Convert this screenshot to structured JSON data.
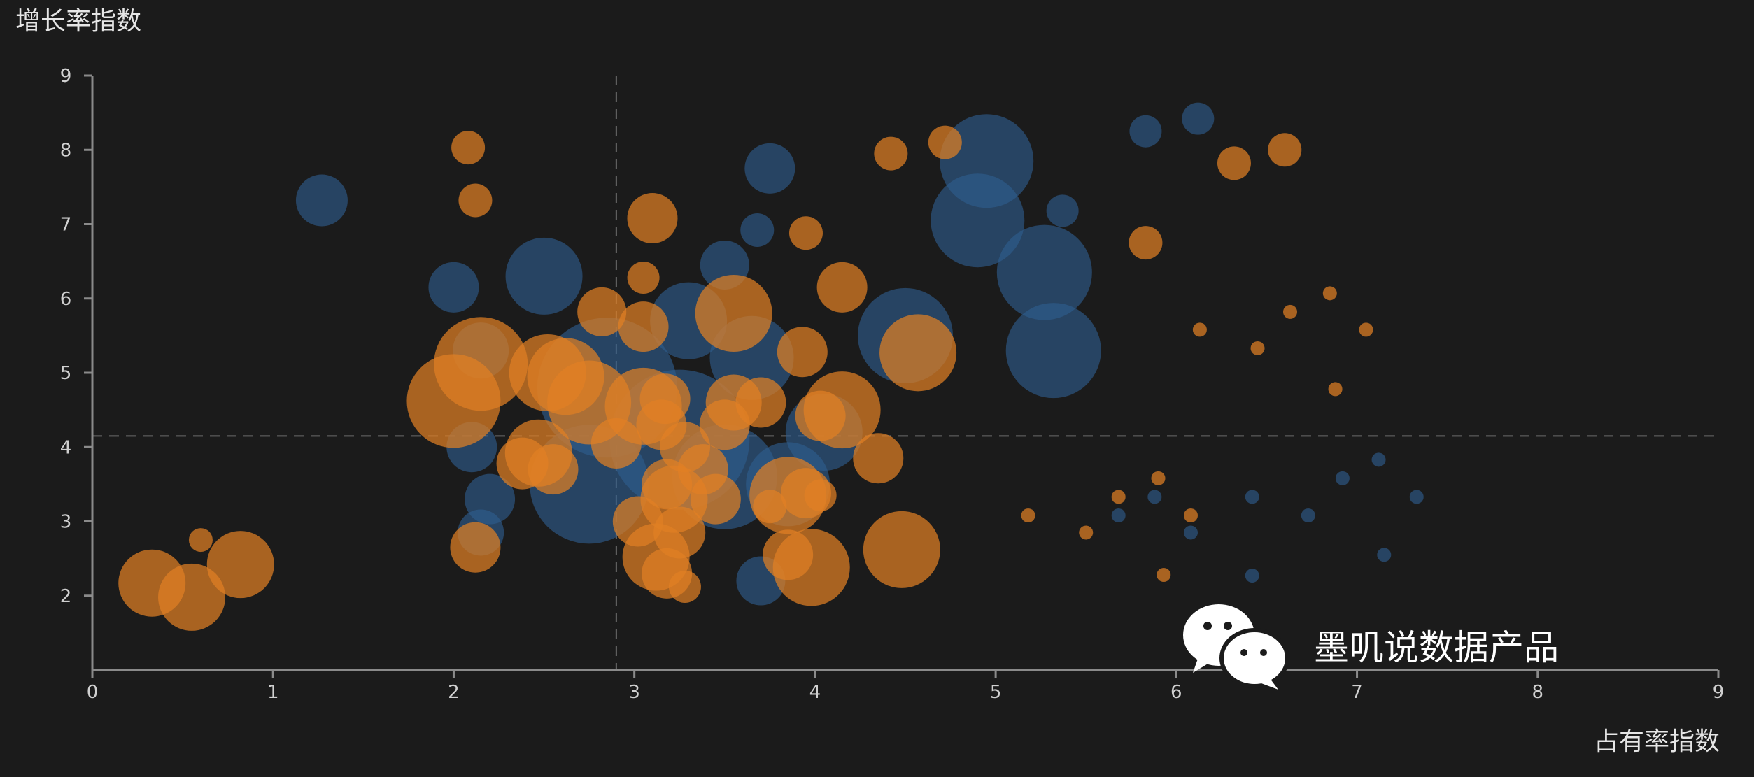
{
  "chart_data": {
    "type": "scatter",
    "subtype": "bubble",
    "xlabel": "占有率指数",
    "ylabel": "增长率指数",
    "xlim": [
      0,
      9
    ],
    "ylim": [
      1,
      9
    ],
    "x_ticks": [
      "0",
      "1",
      "2",
      "3",
      "4",
      "5",
      "6",
      "7",
      "8",
      "9"
    ],
    "y_ticks": [
      "2",
      "3",
      "4",
      "5",
      "6",
      "7",
      "8",
      "9"
    ],
    "grid": false,
    "reference_lines": {
      "x": 2.9,
      "y": 4.15
    },
    "colors": {
      "blue": "#2f5d8f",
      "orange": "#e07f24",
      "background": "#1b1b1b",
      "axis": "#8a8a8a",
      "refline": "#6a6a6a"
    },
    "series": [
      {
        "color_key": "blue",
        "points": [
          {
            "x": 1.27,
            "y": 7.32,
            "r": 37
          },
          {
            "x": 2.0,
            "y": 6.15,
            "r": 36
          },
          {
            "x": 2.5,
            "y": 6.3,
            "r": 55
          },
          {
            "x": 2.85,
            "y": 4.8,
            "r": 100
          },
          {
            "x": 2.75,
            "y": 3.5,
            "r": 85
          },
          {
            "x": 2.15,
            "y": 5.3,
            "r": 40
          },
          {
            "x": 2.1,
            "y": 4.0,
            "r": 36
          },
          {
            "x": 2.2,
            "y": 3.3,
            "r": 36
          },
          {
            "x": 2.15,
            "y": 2.85,
            "r": 33
          },
          {
            "x": 3.3,
            "y": 5.7,
            "r": 55
          },
          {
            "x": 3.5,
            "y": 6.45,
            "r": 35
          },
          {
            "x": 3.65,
            "y": 5.2,
            "r": 60
          },
          {
            "x": 3.25,
            "y": 4.1,
            "r": 100
          },
          {
            "x": 3.5,
            "y": 3.6,
            "r": 75
          },
          {
            "x": 3.75,
            "y": 7.75,
            "r": 36
          },
          {
            "x": 3.68,
            "y": 6.92,
            "r": 24
          },
          {
            "x": 3.7,
            "y": 2.2,
            "r": 35
          },
          {
            "x": 3.85,
            "y": 3.5,
            "r": 60
          },
          {
            "x": 4.05,
            "y": 4.2,
            "r": 55
          },
          {
            "x": 4.5,
            "y": 5.5,
            "r": 68
          },
          {
            "x": 4.95,
            "y": 7.85,
            "r": 67
          },
          {
            "x": 4.9,
            "y": 7.05,
            "r": 67
          },
          {
            "x": 5.27,
            "y": 6.35,
            "r": 68
          },
          {
            "x": 5.32,
            "y": 5.3,
            "r": 68
          },
          {
            "x": 5.37,
            "y": 7.18,
            "r": 23
          },
          {
            "x": 5.83,
            "y": 8.25,
            "r": 23
          },
          {
            "x": 6.12,
            "y": 8.42,
            "r": 23
          },
          {
            "x": 5.68,
            "y": 3.08,
            "r": 10
          },
          {
            "x": 5.88,
            "y": 3.33,
            "r": 10
          },
          {
            "x": 6.08,
            "y": 2.85,
            "r": 10
          },
          {
            "x": 6.42,
            "y": 3.33,
            "r": 10
          },
          {
            "x": 6.42,
            "y": 2.27,
            "r": 10
          },
          {
            "x": 6.73,
            "y": 3.08,
            "r": 10
          },
          {
            "x": 6.92,
            "y": 3.58,
            "r": 10
          },
          {
            "x": 7.12,
            "y": 3.83,
            "r": 10
          },
          {
            "x": 7.15,
            "y": 2.55,
            "r": 10
          },
          {
            "x": 7.33,
            "y": 3.33,
            "r": 10
          }
        ]
      },
      {
        "color_key": "orange",
        "points": [
          {
            "x": 0.33,
            "y": 2.17,
            "r": 48
          },
          {
            "x": 0.55,
            "y": 1.98,
            "r": 48
          },
          {
            "x": 0.6,
            "y": 2.75,
            "r": 17
          },
          {
            "x": 0.82,
            "y": 2.42,
            "r": 48
          },
          {
            "x": 2.08,
            "y": 8.03,
            "r": 24
          },
          {
            "x": 2.12,
            "y": 7.32,
            "r": 24
          },
          {
            "x": 2.0,
            "y": 4.62,
            "r": 67
          },
          {
            "x": 2.15,
            "y": 5.12,
            "r": 67
          },
          {
            "x": 2.12,
            "y": 2.65,
            "r": 36
          },
          {
            "x": 2.38,
            "y": 3.78,
            "r": 37
          },
          {
            "x": 2.47,
            "y": 3.92,
            "r": 48
          },
          {
            "x": 2.55,
            "y": 3.7,
            "r": 36
          },
          {
            "x": 2.52,
            "y": 5.0,
            "r": 55
          },
          {
            "x": 2.62,
            "y": 4.95,
            "r": 55
          },
          {
            "x": 2.75,
            "y": 4.6,
            "r": 60
          },
          {
            "x": 2.82,
            "y": 5.82,
            "r": 35
          },
          {
            "x": 2.9,
            "y": 4.05,
            "r": 36
          },
          {
            "x": 3.05,
            "y": 4.55,
            "r": 55
          },
          {
            "x": 3.05,
            "y": 5.62,
            "r": 36
          },
          {
            "x": 3.1,
            "y": 7.08,
            "r": 36
          },
          {
            "x": 3.05,
            "y": 6.28,
            "r": 23
          },
          {
            "x": 3.15,
            "y": 4.3,
            "r": 36
          },
          {
            "x": 3.17,
            "y": 4.65,
            "r": 36
          },
          {
            "x": 3.28,
            "y": 4.0,
            "r": 36
          },
          {
            "x": 3.02,
            "y": 3.0,
            "r": 36
          },
          {
            "x": 3.18,
            "y": 3.5,
            "r": 36
          },
          {
            "x": 3.22,
            "y": 3.3,
            "r": 48
          },
          {
            "x": 3.25,
            "y": 2.85,
            "r": 37
          },
          {
            "x": 3.12,
            "y": 2.52,
            "r": 48
          },
          {
            "x": 3.18,
            "y": 2.3,
            "r": 36
          },
          {
            "x": 3.28,
            "y": 2.12,
            "r": 23
          },
          {
            "x": 3.38,
            "y": 3.7,
            "r": 36
          },
          {
            "x": 3.45,
            "y": 3.3,
            "r": 36
          },
          {
            "x": 3.55,
            "y": 5.8,
            "r": 55
          },
          {
            "x": 3.55,
            "y": 4.6,
            "r": 40
          },
          {
            "x": 3.5,
            "y": 4.3,
            "r": 36
          },
          {
            "x": 3.7,
            "y": 4.6,
            "r": 36
          },
          {
            "x": 3.75,
            "y": 3.2,
            "r": 24
          },
          {
            "x": 3.85,
            "y": 3.35,
            "r": 55
          },
          {
            "x": 3.95,
            "y": 3.38,
            "r": 36
          },
          {
            "x": 4.03,
            "y": 3.35,
            "r": 23
          },
          {
            "x": 3.93,
            "y": 5.28,
            "r": 36
          },
          {
            "x": 3.95,
            "y": 6.88,
            "r": 24
          },
          {
            "x": 4.15,
            "y": 6.15,
            "r": 36
          },
          {
            "x": 4.15,
            "y": 4.5,
            "r": 55
          },
          {
            "x": 4.03,
            "y": 4.42,
            "r": 36
          },
          {
            "x": 4.35,
            "y": 3.85,
            "r": 36
          },
          {
            "x": 3.85,
            "y": 2.55,
            "r": 36
          },
          {
            "x": 3.98,
            "y": 2.38,
            "r": 55
          },
          {
            "x": 4.42,
            "y": 7.95,
            "r": 24
          },
          {
            "x": 4.72,
            "y": 8.1,
            "r": 24
          },
          {
            "x": 4.48,
            "y": 2.62,
            "r": 55
          },
          {
            "x": 4.57,
            "y": 5.27,
            "r": 55
          },
          {
            "x": 5.83,
            "y": 6.75,
            "r": 24
          },
          {
            "x": 6.32,
            "y": 7.82,
            "r": 24
          },
          {
            "x": 6.6,
            "y": 8.0,
            "r": 24
          },
          {
            "x": 6.85,
            "y": 6.07,
            "r": 10
          },
          {
            "x": 6.13,
            "y": 5.58,
            "r": 10
          },
          {
            "x": 6.45,
            "y": 5.33,
            "r": 10
          },
          {
            "x": 6.63,
            "y": 5.82,
            "r": 10
          },
          {
            "x": 7.05,
            "y": 5.58,
            "r": 10
          },
          {
            "x": 6.88,
            "y": 4.78,
            "r": 10
          },
          {
            "x": 5.18,
            "y": 3.08,
            "r": 10
          },
          {
            "x": 5.5,
            "y": 2.85,
            "r": 10
          },
          {
            "x": 5.68,
            "y": 3.33,
            "r": 10
          },
          {
            "x": 5.9,
            "y": 3.58,
            "r": 10
          },
          {
            "x": 6.08,
            "y": 3.08,
            "r": 10
          },
          {
            "x": 5.93,
            "y": 2.28,
            "r": 10
          }
        ]
      }
    ]
  },
  "watermark": {
    "text": "墨叽说数据产品",
    "icon": "wechat-icon"
  }
}
